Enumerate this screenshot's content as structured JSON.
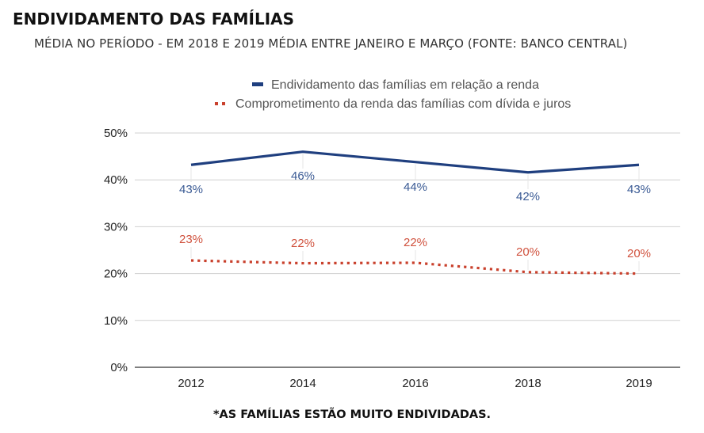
{
  "header": {
    "title": "ENDIVIDAMENTO DAS FAMÍLIAS",
    "subtitle": "MÉDIA NO PERÍODO - EM 2018 E 2019 MÉDIA ENTRE JANEIRO E MARÇO (FONTE: BANCO CENTRAL)"
  },
  "footer": {
    "note": "*AS FAMÍLIAS ESTÃO MUITO ENDIVIDADAS."
  },
  "colors": {
    "series1": "#1f3f7f",
    "series1_label": "#3a5a94",
    "series2": "#c9402c",
    "series2_label": "#d0523e",
    "grid": "#d0d0d0",
    "baseline": "#333333"
  },
  "chart_data": {
    "type": "line",
    "title": "ENDIVIDAMENTO DAS FAMÍLIAS",
    "subtitle": "MÉDIA NO PERÍODO - EM 2018 E 2019 MÉDIA ENTRE JANEIRO E MARÇO (FONTE: BANCO CENTRAL)",
    "xlabel": "",
    "ylabel": "",
    "categories": [
      "2012",
      "2014",
      "2016",
      "2018",
      "2019"
    ],
    "ylim": [
      0,
      50
    ],
    "yticks": [
      0,
      10,
      20,
      30,
      40,
      50
    ],
    "ytick_labels": [
      "0%",
      "10%",
      "20%",
      "30%",
      "40%",
      "50%"
    ],
    "grid": true,
    "legend_position": "top-center",
    "series": [
      {
        "name": "Endividamento das famílias em relação a renda",
        "style": "solid",
        "values": [
          43.2,
          46.0,
          43.8,
          41.6,
          43.2
        ],
        "labels": [
          "43%",
          "46%",
          "44%",
          "42%",
          "43%"
        ]
      },
      {
        "name": "Comprometimento da renda das famílias com dívida e juros",
        "style": "dotted",
        "values": [
          22.8,
          22.2,
          22.3,
          20.3,
          20.0
        ],
        "labels": [
          "23%",
          "22%",
          "22%",
          "20%",
          "20%"
        ]
      }
    ]
  }
}
